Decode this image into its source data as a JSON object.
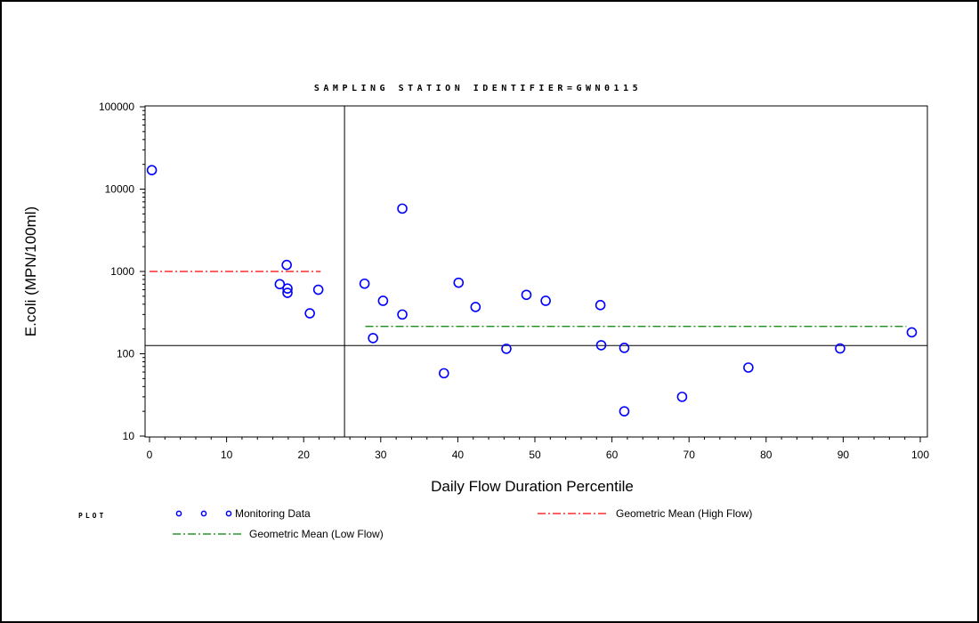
{
  "chart_data": {
    "type": "scatter",
    "title": "SAMPLING STATION IDENTIFIER=GWN0115",
    "xlabel": "Daily Flow Duration Percentile",
    "ylabel": "E.coli (MPN/100ml)",
    "xlim": [
      0,
      100
    ],
    "ylim": [
      10,
      100000
    ],
    "yscale": "log",
    "x_ticks": [
      0,
      10,
      20,
      30,
      40,
      50,
      60,
      70,
      80,
      90,
      100
    ],
    "y_ticks": [
      10,
      100,
      1000,
      10000,
      100000
    ],
    "y_tick_labels": [
      "10",
      "100",
      "1000",
      "10000",
      "100000"
    ],
    "reference_lines": {
      "vertical_x": 25.3,
      "horizontal_y": 126
    },
    "series": [
      {
        "name": "Monitoring Data",
        "color": "#0000ff",
        "marker": "open-circle",
        "points": [
          {
            "x": 0.3,
            "y": 17000
          },
          {
            "x": 16.9,
            "y": 700
          },
          {
            "x": 17.8,
            "y": 1200
          },
          {
            "x": 17.9,
            "y": 620
          },
          {
            "x": 17.9,
            "y": 550
          },
          {
            "x": 20.8,
            "y": 310
          },
          {
            "x": 21.9,
            "y": 600
          },
          {
            "x": 27.9,
            "y": 710
          },
          {
            "x": 29.0,
            "y": 155
          },
          {
            "x": 30.3,
            "y": 440
          },
          {
            "x": 32.8,
            "y": 5800
          },
          {
            "x": 32.8,
            "y": 300
          },
          {
            "x": 38.2,
            "y": 58
          },
          {
            "x": 40.1,
            "y": 730
          },
          {
            "x": 42.3,
            "y": 370
          },
          {
            "x": 46.3,
            "y": 115
          },
          {
            "x": 48.9,
            "y": 520
          },
          {
            "x": 51.4,
            "y": 440
          },
          {
            "x": 58.5,
            "y": 390
          },
          {
            "x": 58.6,
            "y": 127
          },
          {
            "x": 61.6,
            "y": 118
          },
          {
            "x": 61.6,
            "y": 20
          },
          {
            "x": 69.1,
            "y": 30
          },
          {
            "x": 77.7,
            "y": 68
          },
          {
            "x": 89.6,
            "y": 116
          },
          {
            "x": 98.9,
            "y": 182
          }
        ]
      },
      {
        "name": "Geometric Mean (High Flow)",
        "color": "#ff0000",
        "style": "dash-dot",
        "x": [
          0,
          22.2
        ],
        "y": [
          1000,
          1000
        ]
      },
      {
        "name": "Geometric Mean (Low Flow)",
        "color": "#008000",
        "style": "dash-dot",
        "x": [
          28,
          98.2
        ],
        "y": [
          215,
          215
        ]
      }
    ],
    "legend": {
      "title": "PLOT",
      "placement": "bottom",
      "entries": [
        "Monitoring Data",
        "Geometric Mean (High Flow)",
        "Geometric Mean (Low Flow)"
      ]
    }
  }
}
